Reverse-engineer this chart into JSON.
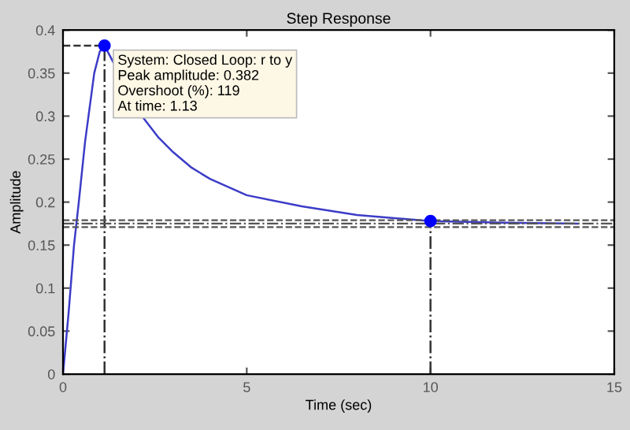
{
  "chart_data": {
    "type": "line",
    "title": "Step Response",
    "xlabel": "Time (sec)",
    "ylabel": "Amplitude",
    "xlim": [
      0,
      15
    ],
    "xticks": [
      0,
      5,
      10,
      15
    ],
    "ylim": [
      0,
      0.4
    ],
    "yticks": [
      0,
      0.05,
      0.1,
      0.15,
      0.2,
      0.25,
      0.3,
      0.35,
      0.4
    ],
    "grid": false,
    "legend": false,
    "series": [
      {
        "color": "#3c3cc8",
        "line_style": "solid",
        "x": [
          0,
          0.15,
          0.3,
          0.43,
          0.6,
          0.85,
          1.0,
          1.13,
          1.4,
          2.15,
          2.6,
          3.0,
          3.5,
          4.0,
          5.0,
          6.5,
          8.0,
          10.0,
          12.0,
          14.0
        ],
        "values": [
          0,
          0.07,
          0.15,
          0.2,
          0.27,
          0.35,
          0.375,
          0.382,
          0.36,
          0.3,
          0.275,
          0.258,
          0.24,
          0.227,
          0.208,
          0.195,
          0.185,
          0.178,
          0.176,
          0.175
        ]
      },
      {
        "color": "#333333",
        "line_style": "dashed",
        "x": [
          0,
          1.13
        ],
        "values": [
          0.382,
          0.382
        ]
      },
      {
        "color": "#333333",
        "line_style": "dashdot",
        "x": [
          1.13,
          1.13
        ],
        "values": [
          0,
          0.382
        ]
      },
      {
        "color": "#333333",
        "line_style": "dashdot",
        "x": [
          10,
          10
        ],
        "values": [
          0,
          0.178
        ]
      },
      {
        "type": "scatter",
        "color": "#0000ff",
        "marker": "circle",
        "x": [
          1.13,
          10
        ],
        "values": [
          0.382,
          0.178
        ]
      }
    ],
    "ref_lines": [
      {
        "axis": "y",
        "value": 0.171,
        "color": "#555555",
        "line_style": "dashed"
      },
      {
        "axis": "y",
        "value": 0.175,
        "color": "#555555",
        "line_style": "dashdot"
      },
      {
        "axis": "y",
        "value": 0.179,
        "color": "#555555",
        "line_style": "dashed"
      }
    ],
    "annotations": [
      {
        "text": "System: Closed Loop: r to y\nPeak amplitude: 0.382\nOvershoot (%): 119\nAt time: 1.13",
        "x": 1.13,
        "y": 0.382
      }
    ]
  }
}
